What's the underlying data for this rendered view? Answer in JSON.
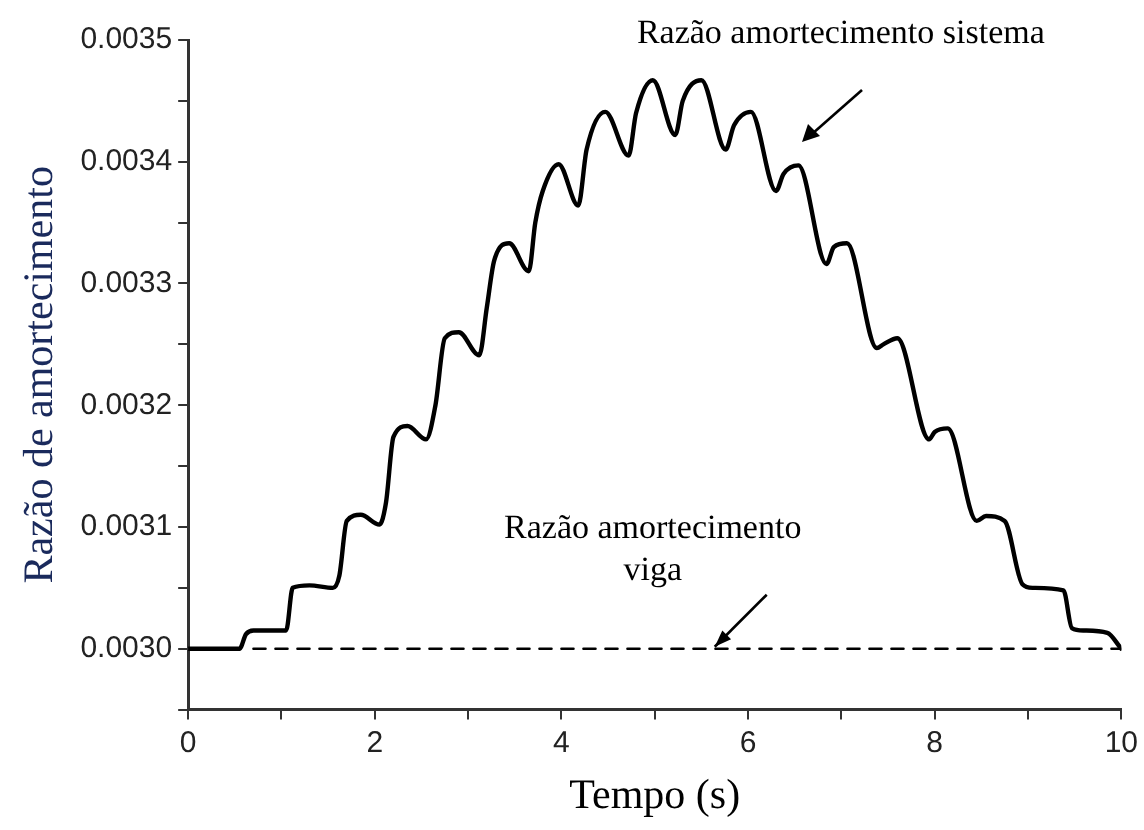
{
  "chart_data": {
    "type": "line",
    "xlabel": "Tempo (s)",
    "ylabel": "Razão de amortecimento",
    "xlim": [
      0,
      10
    ],
    "xticks": [
      0,
      {
        "value": 1,
        "label": null
      },
      2,
      {
        "value": 3,
        "label": null
      },
      4,
      {
        "value": 5,
        "label": null
      },
      6,
      {
        "value": 7,
        "label": null
      },
      8,
      {
        "value": 9,
        "label": null
      },
      10
    ],
    "ylim": [
      0.00295,
      0.0035
    ],
    "yticks": [
      {
        "value": 0.00295,
        "label": null
      },
      {
        "value": 0.003,
        "label": "0.0030"
      },
      {
        "value": 0.00305,
        "label": null
      },
      0.0031,
      {
        "value": 0.00315,
        "label": null
      },
      0.0032,
      {
        "value": 0.00325,
        "label": null
      },
      0.0033,
      {
        "value": 0.00335,
        "label": null
      },
      0.0034,
      {
        "value": 0.00345,
        "label": null
      },
      0.0035
    ],
    "grid": false,
    "legend": false,
    "marker": "none",
    "series": [
      {
        "color": "#000000",
        "line_style": "solid",
        "x": [
          0,
          0.55,
          0.62,
          0.7,
          1.05,
          1.12,
          1.3,
          1.55,
          1.62,
          1.7,
          1.85,
          2.05,
          2.12,
          2.2,
          2.35,
          2.55,
          2.65,
          2.75,
          2.9,
          3.12,
          3.2,
          3.28,
          3.44,
          3.65,
          3.72,
          3.8,
          3.97,
          4.18,
          4.27,
          4.47,
          4.72,
          4.8,
          4.98,
          5.22,
          5.3,
          5.5,
          5.76,
          5.85,
          6.03,
          6.3,
          6.38,
          6.54,
          6.84,
          6.92,
          7.06,
          7.38,
          7.45,
          7.6,
          7.94,
          8.0,
          8.14,
          8.45,
          8.55,
          8.75,
          8.94,
          9.05,
          9.38,
          9.47,
          9.6,
          9.85,
          10
        ],
        "values": [
          0.003,
          0.003,
          0.003012,
          0.003015,
          0.003015,
          0.00305,
          0.003052,
          0.00305,
          0.00306,
          0.003105,
          0.00311,
          0.003102,
          0.00312,
          0.003174,
          0.003183,
          0.003172,
          0.0032,
          0.003255,
          0.00326,
          0.003241,
          0.00328,
          0.003319,
          0.003333,
          0.00331,
          0.00335,
          0.003376,
          0.003398,
          0.003364,
          0.00341,
          0.003441,
          0.003405,
          0.00344,
          0.003467,
          0.003422,
          0.00345,
          0.003467,
          0.00341,
          0.00343,
          0.003441,
          0.003376,
          0.00339,
          0.003397,
          0.003316,
          0.00333,
          0.003333,
          0.003247,
          0.00325,
          0.003255,
          0.003172,
          0.003178,
          0.003181,
          0.003105,
          0.003109,
          0.003105,
          0.003053,
          0.00305,
          0.003048,
          0.003017,
          0.003015,
          0.003013,
          0.003
        ]
      },
      {
        "color": "#000000",
        "line_style": "dashed",
        "x": [
          0.7,
          10
        ],
        "values": [
          0.003,
          0.003
        ]
      }
    ],
    "annotations": [
      "Razão amortecimento sistema",
      {
        "text": "Razão amortecimento\nviga",
        "x": 5.6,
        "y": 0.003
      }
    ]
  }
}
